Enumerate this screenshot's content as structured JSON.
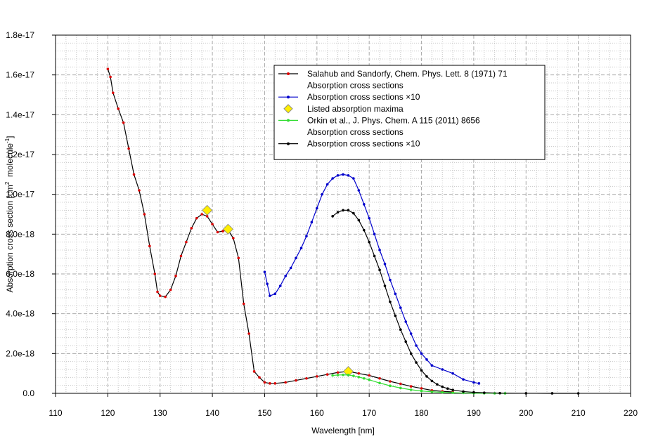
{
  "chart_data": {
    "type": "line",
    "xlabel": "Wavelength [nm]",
    "ylabel": {
      "text": "Absorption cross section [cm",
      "sup1": "2",
      "mid": "  molecule",
      "sup2": "-1",
      "end": "]"
    },
    "xlim": [
      110,
      220
    ],
    "ylim": [
      0,
      1.8e-17
    ],
    "xticks": [
      110,
      120,
      130,
      140,
      150,
      160,
      170,
      180,
      190,
      200,
      210,
      220
    ],
    "yticks": [
      {
        "value": 0,
        "label": "0.0"
      },
      {
        "value": 2e-18,
        "label": "2.0e-18"
      },
      {
        "value": 4e-18,
        "label": "4.0e-18"
      },
      {
        "value": 6e-18,
        "label": "6.0e-18"
      },
      {
        "value": 8e-18,
        "label": "8.0e-18"
      },
      {
        "value": 1e-17,
        "label": "1.0e-17"
      },
      {
        "value": 1.2e-17,
        "label": "1.2e-17"
      },
      {
        "value": 1.4e-17,
        "label": "1.4e-17"
      },
      {
        "value": 1.6e-17,
        "label": "1.6e-17"
      },
      {
        "value": 1.8e-17,
        "label": "1.8e-17"
      }
    ],
    "grid": true,
    "legend": "upper-right",
    "series": [
      {
        "source": "Salahub and Sandorfy, Chem. Phys. Lett. 8 (1971) 71",
        "name": "Absorption cross sections",
        "mode": "line",
        "color": "#dd0000",
        "line_color": "#000000",
        "x": [
          120,
          120.5,
          121,
          122,
          123,
          124,
          125,
          126,
          127,
          128,
          129,
          129.5,
          130,
          131,
          132,
          133,
          134,
          135,
          136,
          137,
          138,
          139,
          140,
          141,
          142,
          143,
          144,
          145,
          146,
          147,
          148,
          149,
          150,
          151,
          152,
          154,
          156,
          158,
          160,
          162,
          164,
          166,
          168,
          170,
          172,
          174,
          176,
          178,
          180,
          182,
          184,
          186
        ],
        "values": [
          1.63e-17,
          1.59e-17,
          1.51e-17,
          1.43e-17,
          1.36e-17,
          1.23e-17,
          1.1e-17,
          1.02e-17,
          9e-18,
          7.4e-18,
          6e-18,
          5.1e-18,
          4.9e-18,
          4.85e-18,
          5.2e-18,
          5.9e-18,
          6.9e-18,
          7.6e-18,
          8.3e-18,
          8.8e-18,
          9e-18,
          8.9e-18,
          8.5e-18,
          8.1e-18,
          8.15e-18,
          8.2e-18,
          7.8e-18,
          6.8e-18,
          4.5e-18,
          3e-18,
          1.1e-18,
          8e-19,
          5.5e-19,
          5e-19,
          5e-19,
          5.5e-19,
          6.5e-19,
          7.5e-19,
          8.5e-19,
          9.5e-19,
          1.05e-18,
          1.1e-18,
          1e-18,
          9e-19,
          7.5e-19,
          6e-19,
          4.8e-19,
          3.5e-19,
          2.5e-19,
          1.5e-19,
          1e-19,
          7e-20
        ]
      },
      {
        "name": "Absorption cross sections ×10",
        "mode": "line",
        "color": "#0000cc",
        "line_color": "#0000cc",
        "x": [
          150,
          150.5,
          151,
          152,
          153,
          154,
          155,
          156,
          157,
          158,
          159,
          160,
          161,
          162,
          163,
          164,
          165,
          166,
          167,
          168,
          169,
          170,
          171,
          172,
          173,
          174,
          175,
          176,
          177,
          178,
          179,
          180,
          181,
          182,
          184,
          186,
          188,
          190,
          191
        ],
        "values": [
          6.1e-18,
          5.5e-18,
          4.9e-18,
          5e-18,
          5.4e-18,
          5.9e-18,
          6.3e-18,
          6.8e-18,
          7.3e-18,
          7.9e-18,
          8.6e-18,
          9.3e-18,
          1e-17,
          1.05e-17,
          1.08e-17,
          1.095e-17,
          1.1e-17,
          1.095e-17,
          1.08e-17,
          1.02e-17,
          9.5e-18,
          8.8e-18,
          8e-18,
          7.2e-18,
          6.5e-18,
          5.7e-18,
          5e-18,
          4.3e-18,
          3.6e-18,
          3e-18,
          2.4e-18,
          2e-18,
          1.7e-18,
          1.4e-18,
          1.2e-18,
          1e-18,
          7e-19,
          5.5e-19,
          5e-19
        ]
      },
      {
        "name": "Listed absorption maxima",
        "mode": "scatter",
        "marker": "diamond",
        "color": "#ffee00",
        "x": [
          139,
          143,
          166
        ],
        "values": [
          9.2e-18,
          8.25e-18,
          1.1e-18
        ]
      },
      {
        "source": "Orkin et al., J. Phys. Chem. A 115 (2011) 8656",
        "name": "Absorption cross sections",
        "mode": "line",
        "color": "#33dd33",
        "line_color": "#33dd33",
        "x": [
          163,
          164,
          165,
          166,
          167,
          168,
          169,
          170,
          172,
          174,
          176,
          178,
          180,
          182,
          184,
          186,
          188,
          190,
          192,
          194,
          196
        ],
        "values": [
          9e-19,
          9.2e-19,
          9.3e-19,
          9.2e-19,
          8.8e-19,
          8.2e-19,
          7.5e-19,
          6.8e-19,
          5.2e-19,
          3.8e-19,
          2.7e-19,
          1.8e-19,
          1.2e-19,
          8e-20,
          5e-20,
          3e-20,
          2e-20,
          1e-20,
          5e-21,
          2e-21,
          1e-21
        ]
      },
      {
        "name": "Absorption cross sections ×10",
        "mode": "line",
        "color": "#000000",
        "line_color": "#000000",
        "x": [
          163,
          164,
          165,
          166,
          167,
          168,
          169,
          170,
          171,
          172,
          173,
          174,
          175,
          176,
          177,
          178,
          179,
          180,
          181,
          182,
          183,
          184,
          185,
          186,
          188,
          190,
          192,
          195,
          200,
          205,
          210
        ],
        "values": [
          8.9e-18,
          9.1e-18,
          9.2e-18,
          9.2e-18,
          9.05e-18,
          8.7e-18,
          8.2e-18,
          7.6e-18,
          6.9e-18,
          6.2e-18,
          5.4e-18,
          4.6e-18,
          3.9e-18,
          3.2e-18,
          2.6e-18,
          2e-18,
          1.55e-18,
          1.15e-18,
          8.5e-19,
          6.2e-19,
          4.5e-19,
          3.3e-19,
          2.4e-19,
          1.7e-19,
          9e-20,
          5e-20,
          3e-20,
          1e-20,
          3e-21,
          1e-21,
          0
        ]
      }
    ]
  }
}
